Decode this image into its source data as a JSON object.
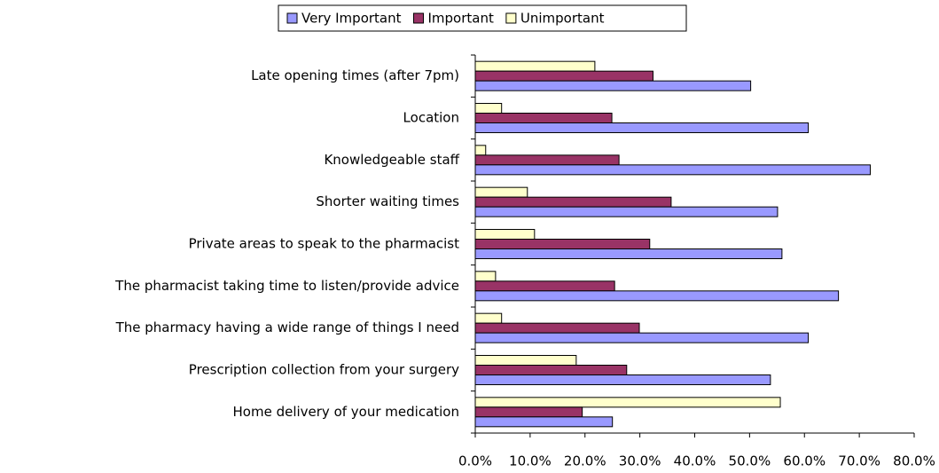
{
  "chart_data": {
    "type": "hbar",
    "categories": [
      "Late opening times (after 7pm)",
      "Location",
      "Knowledgeable staff",
      "Shorter waiting times",
      "Private areas to speak to the pharmacist",
      "The pharmacist taking time to listen/provide advice",
      "The pharmacy having a wide range of things I need",
      "Prescription collection from your surgery",
      "Home delivery of your medication"
    ],
    "series": [
      {
        "name": "Very Important",
        "color": "#9999ff",
        "values": [
          50.2,
          60.7,
          72.0,
          55.1,
          55.9,
          66.2,
          60.7,
          53.8,
          25.0
        ]
      },
      {
        "name": "Important",
        "color": "#993366",
        "values": [
          32.4,
          24.9,
          26.2,
          35.7,
          31.8,
          25.4,
          29.9,
          27.6,
          19.5
        ]
      },
      {
        "name": "Unimportant",
        "color": "#ffffcc",
        "values": [
          21.8,
          4.8,
          1.9,
          9.5,
          10.8,
          3.7,
          4.8,
          18.4,
          55.6
        ]
      }
    ],
    "xlim": [
      0,
      80
    ],
    "xticks": [
      {
        "value": 0,
        "label": "0.0%"
      },
      {
        "value": 10,
        "label": "10.0%"
      },
      {
        "value": 20,
        "label": "20.0%"
      },
      {
        "value": 30,
        "label": "30.0%"
      },
      {
        "value": 40,
        "label": "40.0%"
      },
      {
        "value": 50,
        "label": "50.0%"
      },
      {
        "value": 60,
        "label": "60.0%"
      },
      {
        "value": 70,
        "label": "70.0%"
      },
      {
        "value": 80,
        "label": "80.0%"
      }
    ],
    "legend": "top"
  }
}
